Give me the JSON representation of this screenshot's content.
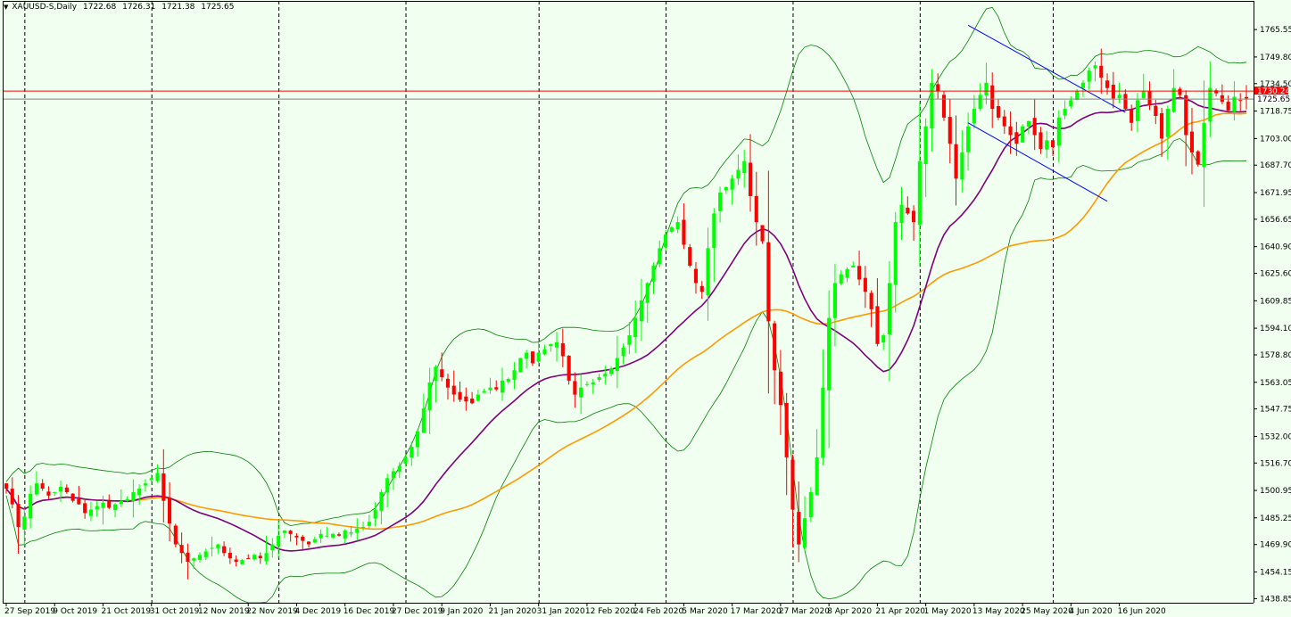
{
  "header": {
    "symbol_line": "XAUUSD-S,Daily",
    "open": "1722.68",
    "high": "1726.31",
    "low": "1721.38",
    "close": "1725.65"
  },
  "colors": {
    "background": "#f0fff0",
    "bull": "#00ff00",
    "bear": "#ff0000",
    "ma_fast": "#800080",
    "ma_slow": "#ff9900",
    "bands": "#008000",
    "channel": "#0000ff",
    "level_line": "#ff0000",
    "bid_line": "#808080"
  },
  "chart_data": {
    "type": "candlestick",
    "symbol": "XAUUSD-S",
    "timeframe": "Daily",
    "y_ticks": [
      1765.55,
      1749.8,
      1734.5,
      1718.75,
      1703.0,
      1687.7,
      1671.95,
      1656.65,
      1640.9,
      1625.6,
      1609.85,
      1594.1,
      1578.8,
      1563.05,
      1547.75,
      1532.0,
      1516.7,
      1500.95,
      1485.25,
      1469.9,
      1454.15,
      1438.85
    ],
    "y_tick_labels": [
      "1765.55",
      "1749.80",
      "1734.50",
      "1718.75",
      "1703.00",
      "1687.70",
      "1671.95",
      "1656.65",
      "1640.90",
      "1625.60",
      "1609.85",
      "1594.10",
      "1578.80",
      "1563.05",
      "1547.75",
      "1532.00",
      "1516.70",
      "1500.95",
      "1485.25",
      "1469.90",
      "1454.15",
      "1438.85"
    ],
    "ylim": [
      1436.5,
      1782.0
    ],
    "x_labels": [
      {
        "label": "27 Sep 2019",
        "index": 0
      },
      {
        "label": "9 Oct 2019",
        "index": 8
      },
      {
        "label": "21 Oct 2019",
        "index": 16
      },
      {
        "label": "31 Oct 2019",
        "index": 24
      },
      {
        "label": "12 Nov 2019",
        "index": 32
      },
      {
        "label": "22 Nov 2019",
        "index": 40
      },
      {
        "label": "4 Dec 2019",
        "index": 48
      },
      {
        "label": "16 Dec 2019",
        "index": 56
      },
      {
        "label": "27 Dec 2019",
        "index": 64
      },
      {
        "label": "9 Jan 2020",
        "index": 72
      },
      {
        "label": "21 Jan 2020",
        "index": 80
      },
      {
        "label": "31 Jan 2020",
        "index": 88
      },
      {
        "label": "12 Feb 2020",
        "index": 96
      },
      {
        "label": "24 Feb 2020",
        "index": 104
      },
      {
        "label": "5 Mar 2020",
        "index": 112
      },
      {
        "label": "17 Mar 2020",
        "index": 120
      },
      {
        "label": "27 Mar 2020",
        "index": 128
      },
      {
        "label": "8 Apr 2020",
        "index": 136
      },
      {
        "label": "21 Apr 2020",
        "index": 144
      },
      {
        "label": "1 May 2020",
        "index": 152
      },
      {
        "label": "13 May 2020",
        "index": 160
      },
      {
        "label": "25 May 2020",
        "index": 168
      },
      {
        "label": "4 Jun 2020",
        "index": 176
      },
      {
        "label": "16 Jun 2020",
        "index": 184
      }
    ],
    "period_separators": [
      3,
      24,
      45,
      66,
      88,
      109,
      130,
      151,
      173
    ],
    "horizontal_level": 1730.24,
    "current_price": 1725.65,
    "level_tag": "1730.24",
    "price_tag": "1725.65",
    "closes": [
      1502,
      1493,
      1480,
      1486,
      1499,
      1505,
      1502,
      1498,
      1500,
      1503,
      1500,
      1495,
      1493,
      1488,
      1490,
      1492,
      1494,
      1491,
      1493,
      1495,
      1496,
      1500,
      1502,
      1505,
      1508,
      1511,
      1495,
      1482,
      1470,
      1465,
      1460,
      1462,
      1464,
      1466,
      1468,
      1470,
      1465,
      1462,
      1460,
      1461,
      1462,
      1464,
      1462,
      1465,
      1470,
      1475,
      1478,
      1476,
      1474,
      1472,
      1470,
      1473,
      1476,
      1475,
      1476,
      1475,
      1478,
      1477,
      1479,
      1480,
      1483,
      1490,
      1500,
      1508,
      1512,
      1515,
      1520,
      1526,
      1535,
      1548,
      1563,
      1572,
      1566,
      1560,
      1556,
      1553,
      1552,
      1551,
      1556,
      1558,
      1560,
      1559,
      1564,
      1565,
      1570,
      1577,
      1580,
      1574,
      1580,
      1582,
      1585,
      1586,
      1578,
      1564,
      1556,
      1560,
      1562,
      1563,
      1566,
      1568,
      1571,
      1577,
      1583,
      1590,
      1600,
      1610,
      1620,
      1630,
      1640,
      1648,
      1652,
      1655,
      1642,
      1630,
      1620,
      1615,
      1640,
      1660,
      1672,
      1675,
      1680,
      1685,
      1690,
      1670,
      1655,
      1644,
      1598,
      1570,
      1550,
      1520,
      1490,
      1470,
      1485,
      1500,
      1520,
      1560,
      1600,
      1620,
      1625,
      1628,
      1630,
      1622,
      1615,
      1605,
      1585,
      1590,
      1620,
      1655,
      1665,
      1660,
      1655,
      1690,
      1710,
      1735,
      1730,
      1715,
      1700,
      1680,
      1695,
      1710,
      1720,
      1728,
      1735,
      1720,
      1715,
      1710,
      1705,
      1700,
      1710,
      1713,
      1705,
      1697,
      1702,
      1698,
      1715,
      1720,
      1725,
      1730,
      1735,
      1742,
      1745,
      1738,
      1732,
      1726,
      1728,
      1720,
      1712,
      1725,
      1730,
      1722,
      1716,
      1703,
      1720,
      1732,
      1728,
      1705,
      1695,
      1688,
      1712,
      1732,
      1729,
      1724,
      1719,
      1727,
      1725,
      1726
    ]
  }
}
